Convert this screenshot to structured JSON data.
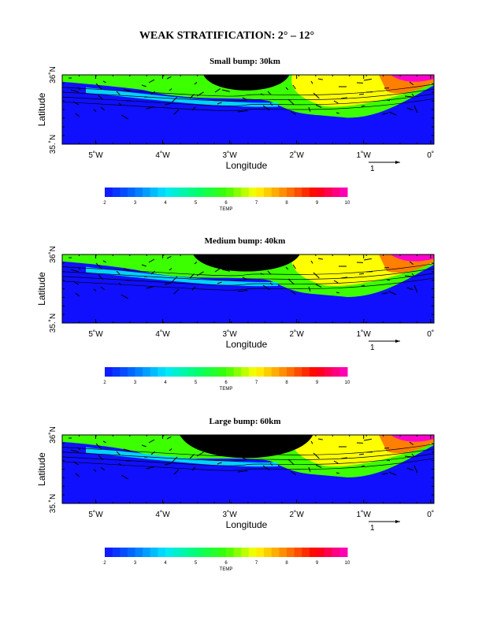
{
  "page_title": "WEAK STRATIFICATION: 2° – 12°",
  "chart_data": [
    {
      "type": "heatmap",
      "title": "Small bump: 30km",
      "xlabel": "Longitude",
      "ylabel": "Latitude",
      "x_ticks": [
        "5˚W",
        "4˚W",
        "3˚W",
        "2˚W",
        "1˚W",
        "0˚"
      ],
      "x_tick_values": [
        -5,
        -4,
        -3,
        -2,
        -1,
        0
      ],
      "y_ticks": [
        "35.˚N",
        "36˚N"
      ],
      "y_tick_values": [
        35,
        36
      ],
      "xlim": [
        -5.5,
        0.05
      ],
      "ylim": [
        35,
        36
      ],
      "bump_peak_lon": -2.75,
      "vector_scale_label": "1",
      "colorbar": {
        "label": "TEMP",
        "ticks": [
          "2",
          "3",
          "4",
          "5",
          "6",
          "7",
          "8",
          "9",
          "10"
        ],
        "min": 2,
        "max": 10
      }
    },
    {
      "type": "heatmap",
      "title": "Medium bump: 40km",
      "xlabel": "Longitude",
      "ylabel": "Latitude",
      "x_ticks": [
        "5˚W",
        "4˚W",
        "3˚W",
        "2˚W",
        "1˚W",
        "0˚"
      ],
      "x_tick_values": [
        -5,
        -4,
        -3,
        -2,
        -1,
        0
      ],
      "y_ticks": [
        "35.˚N",
        "36˚N"
      ],
      "y_tick_values": [
        35,
        36
      ],
      "xlim": [
        -5.5,
        0.05
      ],
      "ylim": [
        35,
        36
      ],
      "bump_peak_lon": -2.75,
      "vector_scale_label": "1",
      "colorbar": {
        "label": "TEMP",
        "ticks": [
          "2",
          "3",
          "4",
          "5",
          "6",
          "7",
          "8",
          "9",
          "10"
        ],
        "min": 2,
        "max": 10
      }
    },
    {
      "type": "heatmap",
      "title": "Large bump: 60km",
      "xlabel": "Longitude",
      "ylabel": "Latitude",
      "x_ticks": [
        "5˚W",
        "4˚W",
        "3˚W",
        "2˚W",
        "1˚W",
        "0˚"
      ],
      "x_tick_values": [
        -5,
        -4,
        -3,
        -2,
        -1,
        0
      ],
      "y_ticks": [
        "35.˚N",
        "36˚N"
      ],
      "y_tick_values": [
        35,
        36
      ],
      "xlim": [
        -5.5,
        0.05
      ],
      "ylim": [
        35,
        36
      ],
      "bump_peak_lon": -2.75,
      "vector_scale_label": "1",
      "colorbar": {
        "label": "TEMP",
        "ticks": [
          "2",
          "3",
          "4",
          "5",
          "6",
          "7",
          "8",
          "9",
          "10"
        ],
        "min": 2,
        "max": 10
      }
    }
  ],
  "colors": {
    "cold": "#1010ff",
    "cyan": "#00e8ff",
    "green": "#3cff00",
    "yellow": "#ffff00",
    "orange": "#ff7f00",
    "red": "#ff0000",
    "magenta": "#ff00cc",
    "topography": "#000000"
  }
}
